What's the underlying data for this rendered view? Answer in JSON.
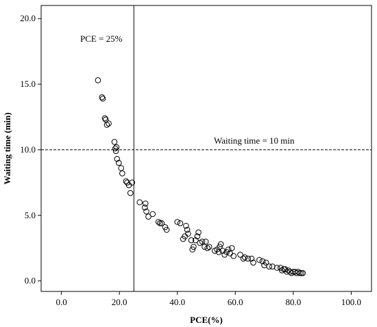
{
  "chart_data": {
    "type": "scatter",
    "xlabel": "PCE(%)",
    "ylabel": "Waiting time (min)",
    "xlim": [
      -7,
      107
    ],
    "ylim": [
      -0.8,
      21.0
    ],
    "xticks": [
      "0.0",
      "20.0",
      "40.0",
      "60.0",
      "80.0",
      "100.0"
    ],
    "yticks": [
      "0.0",
      "5.0",
      "10.0",
      "15.0",
      "20.0"
    ],
    "grid": false,
    "marker": "open-circle",
    "reference_lines": [
      {
        "orientation": "vertical",
        "value": 25,
        "style": "solid",
        "label": "PCE = 25%"
      },
      {
        "orientation": "horizontal",
        "value": 10,
        "style": "dashed",
        "label": "Waiting time = 10 min"
      }
    ],
    "series": [
      {
        "points": [
          [
            12.6,
            15.3
          ],
          [
            14.0,
            14.0
          ],
          [
            14.3,
            13.9
          ],
          [
            15.0,
            12.4
          ],
          [
            15.3,
            12.3
          ],
          [
            15.7,
            11.9
          ],
          [
            16.3,
            12.0
          ],
          [
            18.3,
            10.6
          ],
          [
            18.6,
            10.1
          ],
          [
            18.8,
            9.9
          ],
          [
            19.0,
            10.2
          ],
          [
            19.2,
            9.3
          ],
          [
            19.8,
            9.0
          ],
          [
            20.6,
            8.6
          ],
          [
            21.0,
            8.2
          ],
          [
            22.3,
            7.6
          ],
          [
            22.7,
            7.5
          ],
          [
            23.3,
            7.3
          ],
          [
            23.8,
            6.7
          ],
          [
            24.4,
            7.5
          ],
          [
            27.0,
            6.0
          ],
          [
            28.8,
            5.6
          ],
          [
            29.0,
            5.9
          ],
          [
            29.3,
            5.3
          ],
          [
            30.0,
            4.9
          ],
          [
            31.5,
            5.1
          ],
          [
            33.5,
            4.5
          ],
          [
            34.0,
            4.4
          ],
          [
            34.6,
            4.4
          ],
          [
            35.8,
            4.1
          ],
          [
            36.3,
            3.9
          ],
          [
            40.0,
            4.5
          ],
          [
            41.0,
            4.4
          ],
          [
            42.0,
            3.2
          ],
          [
            42.6,
            3.4
          ],
          [
            43.0,
            4.2
          ],
          [
            43.4,
            3.9
          ],
          [
            43.7,
            3.6
          ],
          [
            44.8,
            3.1
          ],
          [
            45.2,
            2.4
          ],
          [
            45.6,
            2.6
          ],
          [
            46.3,
            3.1
          ],
          [
            46.9,
            3.4
          ],
          [
            47.3,
            3.7
          ],
          [
            47.8,
            2.9
          ],
          [
            48.6,
            3.0
          ],
          [
            49.4,
            2.6
          ],
          [
            49.8,
            3.0
          ],
          [
            50.4,
            2.5
          ],
          [
            51.0,
            2.6
          ],
          [
            52.9,
            2.3
          ],
          [
            53.7,
            2.4
          ],
          [
            54.3,
            2.2
          ],
          [
            54.6,
            2.6
          ],
          [
            55.0,
            2.8
          ],
          [
            55.6,
            2.3
          ],
          [
            56.3,
            2.0
          ],
          [
            57.0,
            2.2
          ],
          [
            57.6,
            2.4
          ],
          [
            58.2,
            2.1
          ],
          [
            58.8,
            2.5
          ],
          [
            59.4,
            1.9
          ],
          [
            61.7,
            2.0
          ],
          [
            62.8,
            1.7
          ],
          [
            63.3,
            1.8
          ],
          [
            64.4,
            1.7
          ],
          [
            65.6,
            1.7
          ],
          [
            66.2,
            1.4
          ],
          [
            68.3,
            1.6
          ],
          [
            69.4,
            1.5
          ],
          [
            70.0,
            1.2
          ],
          [
            70.6,
            1.4
          ],
          [
            71.7,
            1.1
          ],
          [
            72.8,
            1.1
          ],
          [
            74.4,
            1.0
          ],
          [
            75.6,
            1.0
          ],
          [
            76.1,
            0.8
          ],
          [
            76.7,
            0.9
          ],
          [
            77.2,
            0.9
          ],
          [
            77.8,
            0.7
          ],
          [
            78.3,
            0.8
          ],
          [
            78.9,
            0.7
          ],
          [
            79.4,
            0.6
          ],
          [
            80.0,
            0.7
          ],
          [
            80.6,
            0.7
          ],
          [
            81.1,
            0.6
          ],
          [
            81.7,
            0.7
          ],
          [
            82.2,
            0.6
          ],
          [
            82.8,
            0.6
          ],
          [
            83.3,
            0.6
          ]
        ]
      }
    ]
  }
}
